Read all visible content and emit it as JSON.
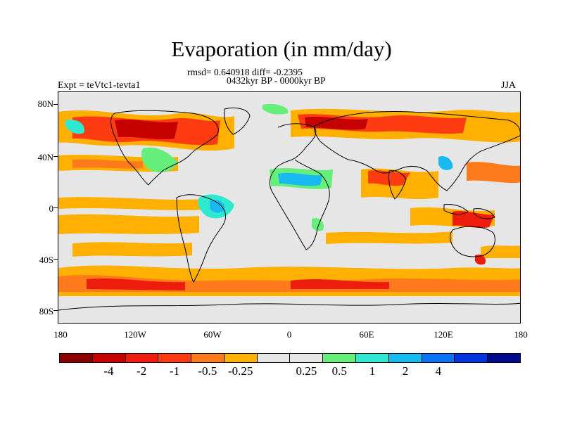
{
  "title": "Evaporation (in mm/day)",
  "stats_line1": "rmsd= 0.640918 diff= -0.2395",
  "stats_line2": "0432kyr BP - 0000kyr BP",
  "left_label": "Expt = teVtc1-tevta1",
  "right_label": "JJA",
  "y_ticks": [
    "80N",
    "40N",
    "0",
    "40S",
    "80S"
  ],
  "x_ticks": [
    "180",
    "120W",
    "60W",
    "0",
    "60E",
    "120E",
    "180"
  ],
  "colorbar": {
    "colors": [
      "#8b0000",
      "#c40000",
      "#ee1c0c",
      "#ff3b12",
      "#ff7a1a",
      "#ffb000",
      "#e6e6e6",
      "#e6e6e6",
      "#66ee7a",
      "#2ee8d0",
      "#18b8f0",
      "#0a74f8",
      "#0036e0",
      "#000a8c"
    ],
    "labels": [
      "-4",
      "-2",
      "-1",
      "-0.5",
      "-0.25",
      "0.25",
      "0.5",
      "1",
      "2",
      "4"
    ]
  },
  "legend_colors": {
    "neg_strong": "#c8140c",
    "neg_mid": "#ff5a1a",
    "neg_weak": "#ffb000",
    "neutral": "#e6e6e6",
    "pos_weak": "#66ee7a",
    "pos_mid": "#2ee8d0",
    "pos_strong": "#18b8f0"
  }
}
